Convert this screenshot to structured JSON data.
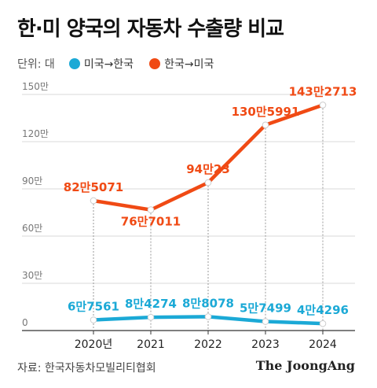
{
  "title": "한·미 양국의 자동차 수출량 비교",
  "unit_label": "단위: 대",
  "source": "자료: 한국자동차모빌리티협회",
  "brand": "The JoongAng",
  "colors": {
    "kr_to_us": "#f04a14",
    "us_to_kr": "#1ba9d6"
  },
  "chart_data": {
    "type": "line",
    "title": "한·미 양국의 자동차 수출량 비교",
    "x": [
      "2020년",
      "2021",
      "2022",
      "2023",
      "2024"
    ],
    "ylim": [
      0,
      1500000
    ],
    "y_ticks": [
      {
        "value": 0,
        "label": "0"
      },
      {
        "value": 300000,
        "label": "30만"
      },
      {
        "value": 600000,
        "label": "60만"
      },
      {
        "value": 900000,
        "label": "90만"
      },
      {
        "value": 1200000,
        "label": "120만"
      },
      {
        "value": 1500000,
        "label": "150만"
      }
    ],
    "grid": true,
    "series": [
      {
        "name": "한국→미국",
        "color": "#f04a14",
        "values": [
          825071,
          767011,
          940023,
          1305991,
          1432713
        ],
        "labels": [
          "82만5071",
          "76만7011",
          "94만23",
          "130만5991",
          "143만2713"
        ]
      },
      {
        "name": "미국→한국",
        "color": "#1ba9d6",
        "values": [
          67561,
          84274,
          88078,
          57499,
          44296
        ],
        "labels": [
          "6만7561",
          "8만4274",
          "8만8078",
          "5만7499",
          "4만4296"
        ]
      }
    ]
  }
}
